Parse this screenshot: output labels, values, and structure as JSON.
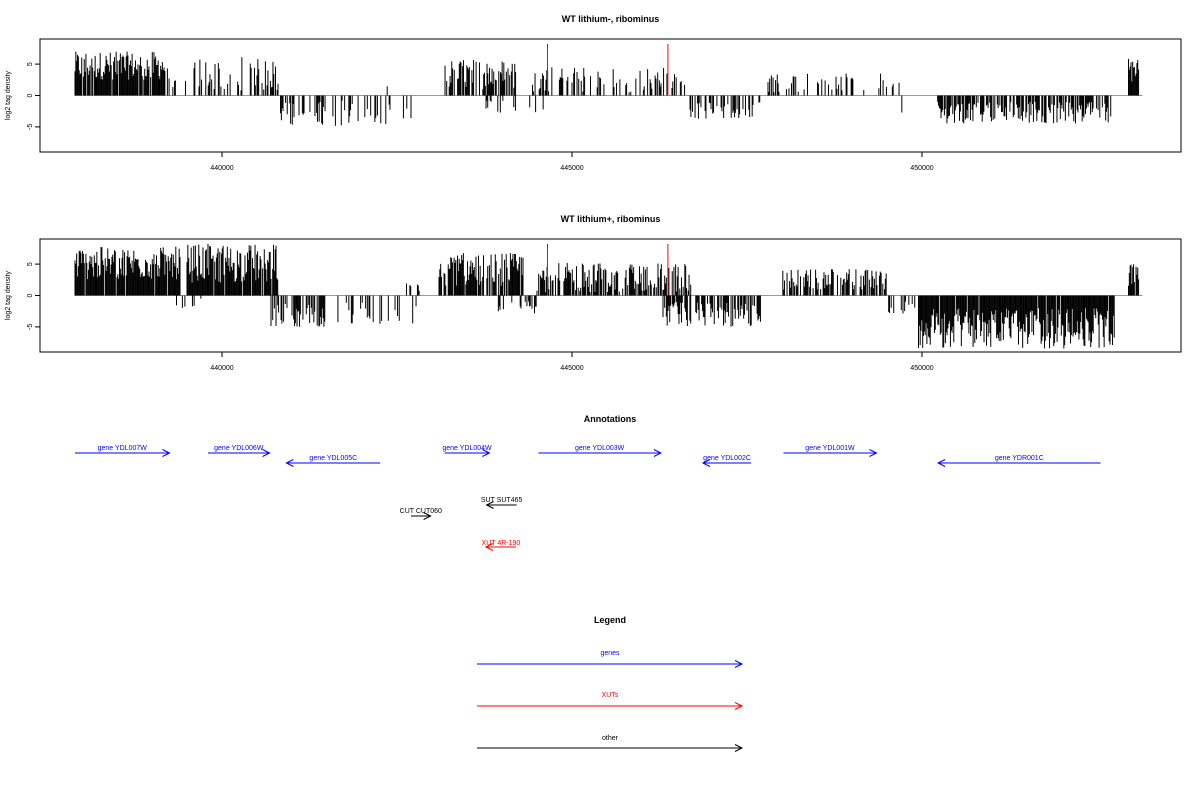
{
  "colors": {
    "bars": "#000000",
    "marker": "#ff0000",
    "genes": "#0000ff",
    "xuts": "#ff0000",
    "other": "#000000",
    "baseline": "#999999"
  },
  "chart_data": [
    {
      "type": "bar",
      "title": "WT lithium-, ribominus",
      "ylabel": "log2 tag density",
      "xlim": [
        437400,
        453700
      ],
      "ylim": [
        -9,
        9
      ],
      "x_ticks": [
        440000,
        445000,
        450000
      ],
      "y_ticks": [
        5,
        0,
        -5
      ],
      "grid": false,
      "marker_lines": {
        "x": [
          444650,
          446370
        ],
        "top": 8.2
      },
      "segments": [
        {
          "from": 437900,
          "to": 439250,
          "sign": 1,
          "density": 0.85,
          "min": 2.5,
          "max": 7.0
        },
        {
          "from": 439250,
          "to": 439500,
          "sign": 1,
          "density": 0.3,
          "min": 0.5,
          "max": 2.5
        },
        {
          "from": 439600,
          "to": 440800,
          "sign": 1,
          "density": 0.45,
          "min": 0.8,
          "max": 6.2
        },
        {
          "from": 440800,
          "to": 441500,
          "sign": -1,
          "density": 0.4,
          "min": 1.0,
          "max": 4.8
        },
        {
          "from": 441500,
          "to": 442700,
          "sign": -1,
          "density": 0.22,
          "min": 0.8,
          "max": 5.0
        },
        {
          "from": 442300,
          "to": 442700,
          "sign": 1,
          "density": 0.12,
          "min": 0.5,
          "max": 1.5
        },
        {
          "from": 443150,
          "to": 444200,
          "sign": 1,
          "density": 0.55,
          "min": 1.0,
          "max": 5.8
        },
        {
          "from": 443700,
          "to": 444600,
          "sign": -1,
          "density": 0.15,
          "min": 0.8,
          "max": 3.2
        },
        {
          "from": 444400,
          "to": 446650,
          "sign": 1,
          "density": 0.38,
          "min": 0.5,
          "max": 4.5
        },
        {
          "from": 446650,
          "to": 447700,
          "sign": -1,
          "density": 0.35,
          "min": 1.0,
          "max": 3.8
        },
        {
          "from": 447800,
          "to": 449700,
          "sign": 1,
          "density": 0.25,
          "min": 0.5,
          "max": 3.5
        },
        {
          "from": 449700,
          "to": 449850,
          "sign": -1,
          "density": 0.2,
          "min": 1.0,
          "max": 3.5
        },
        {
          "from": 450050,
          "to": 450200,
          "sign": 1,
          "density": 0.25,
          "min": 0.5,
          "max": 2.5
        },
        {
          "from": 450200,
          "to": 452700,
          "sign": -1,
          "density": 0.7,
          "min": 1.0,
          "max": 4.5
        },
        {
          "from": 452950,
          "to": 453100,
          "sign": 1,
          "density": 0.9,
          "min": 2.0,
          "max": 6.5
        }
      ]
    },
    {
      "type": "bar",
      "title": "WT lithium+, ribominus",
      "ylabel": "log2 tag density",
      "xlim": [
        437400,
        453700
      ],
      "ylim": [
        -9,
        9
      ],
      "x_ticks": [
        440000,
        445000,
        450000
      ],
      "y_ticks": [
        5,
        0,
        -5
      ],
      "grid": false,
      "marker_lines": {
        "x": [
          444650,
          446370
        ],
        "top": 8.2
      },
      "segments": [
        {
          "from": 437900,
          "to": 439400,
          "sign": 1,
          "density": 0.95,
          "min": 2.5,
          "max": 7.8
        },
        {
          "from": 439350,
          "to": 439700,
          "sign": -1,
          "density": 0.3,
          "min": 0.5,
          "max": 2.8
        },
        {
          "from": 439500,
          "to": 440800,
          "sign": 1,
          "density": 0.95,
          "min": 2.0,
          "max": 8.2
        },
        {
          "from": 440700,
          "to": 441500,
          "sign": -1,
          "density": 0.55,
          "min": 1.0,
          "max": 5.0
        },
        {
          "from": 441500,
          "to": 442800,
          "sign": -1,
          "density": 0.25,
          "min": 0.8,
          "max": 4.8
        },
        {
          "from": 442600,
          "to": 442850,
          "sign": 1,
          "density": 0.25,
          "min": 0.5,
          "max": 2.5
        },
        {
          "from": 443100,
          "to": 444300,
          "sign": 1,
          "density": 0.85,
          "min": 1.5,
          "max": 6.8
        },
        {
          "from": 443900,
          "to": 444500,
          "sign": -1,
          "density": 0.3,
          "min": 0.8,
          "max": 3.0
        },
        {
          "from": 444500,
          "to": 446700,
          "sign": 1,
          "density": 0.65,
          "min": 0.5,
          "max": 5.2
        },
        {
          "from": 446300,
          "to": 447700,
          "sign": -1,
          "density": 0.65,
          "min": 1.0,
          "max": 5.0
        },
        {
          "from": 448000,
          "to": 449500,
          "sign": 1,
          "density": 0.6,
          "min": 0.8,
          "max": 4.2
        },
        {
          "from": 449500,
          "to": 449900,
          "sign": -1,
          "density": 0.25,
          "min": 0.8,
          "max": 3.0
        },
        {
          "from": 449950,
          "to": 452750,
          "sign": -1,
          "density": 0.95,
          "min": 2.0,
          "max": 8.5
        },
        {
          "from": 452950,
          "to": 453100,
          "sign": 1,
          "density": 0.95,
          "min": 1.5,
          "max": 5.2
        }
      ]
    }
  ],
  "annotations": {
    "title": "Annotations",
    "items": [
      {
        "label": "gene YDL007W",
        "kind": "genes",
        "strand": "+",
        "start": 437900,
        "end": 439250,
        "row": 0
      },
      {
        "label": "gene YDL006W",
        "kind": "genes",
        "strand": "+",
        "start": 439800,
        "end": 440680,
        "row": 0
      },
      {
        "label": "gene YDL005C",
        "kind": "genes",
        "strand": "-",
        "start": 440920,
        "end": 442260,
        "row": 1
      },
      {
        "label": "gene YDL004W",
        "kind": "genes",
        "strand": "+",
        "start": 443180,
        "end": 443820,
        "row": 0
      },
      {
        "label": "gene YDL003W",
        "kind": "genes",
        "strand": "+",
        "start": 444520,
        "end": 446270,
        "row": 0
      },
      {
        "label": "gene YDL002C",
        "kind": "genes",
        "strand": "-",
        "start": 446870,
        "end": 447560,
        "row": 1
      },
      {
        "label": "gene YDL001W",
        "kind": "genes",
        "strand": "+",
        "start": 448020,
        "end": 449350,
        "row": 0
      },
      {
        "label": "gene YDR001C",
        "kind": "genes",
        "strand": "-",
        "start": 450230,
        "end": 452550,
        "row": 1
      },
      {
        "label": "SUT SUT465",
        "kind": "other",
        "strand": "-",
        "start": 443780,
        "end": 444210,
        "row": 2
      },
      {
        "label": "CUT CUT060",
        "kind": "other",
        "strand": "+",
        "start": 442700,
        "end": 442980,
        "row": 3
      },
      {
        "label": "XUT 4R-190",
        "kind": "xuts",
        "strand": "-",
        "start": 443770,
        "end": 444200,
        "row": 4
      }
    ]
  },
  "legend": {
    "title": "Legend",
    "items": [
      {
        "label": "genes",
        "kind": "genes"
      },
      {
        "label": "XUTs",
        "kind": "xuts"
      },
      {
        "label": "other",
        "kind": "other"
      }
    ]
  }
}
